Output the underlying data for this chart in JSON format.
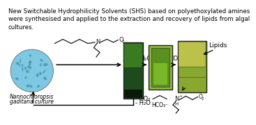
{
  "title_text": "New Switchable Hydrophilicity Solvents (SHS) based on polyethoxylated amines\nwere synthesised and applied to the extraction and recovery of lipids from algal\ncultures.",
  "bg_color": "#ffffff",
  "title_fontsize": 6.2,
  "algae_label_1": "Nannochloropsis",
  "algae_label_2": "gaditana culture",
  "h2o_label": "H₂O",
  "co2_label": "CO₂",
  "minus_co2": "- CO₂",
  "minus_h2o": "- H₂O",
  "hco3_label": "HCO₃⁻",
  "lipids_label": "Lipids",
  "arrow_color": "#000000",
  "text_color": "#000000",
  "algae_color": "#7ec8e3",
  "algae_dot_color": "#4a90a4",
  "photo1_color": "#2d6b2d",
  "photo1_bottom": "#0a2a0a",
  "photo1_top": "#8fba40",
  "photo2_bg": "#b0c060",
  "photo2_inner": "#6fa830",
  "photo3_bg": "#9ab040",
  "photo3_upper": "#d0cc70",
  "photo_border": "#222222"
}
